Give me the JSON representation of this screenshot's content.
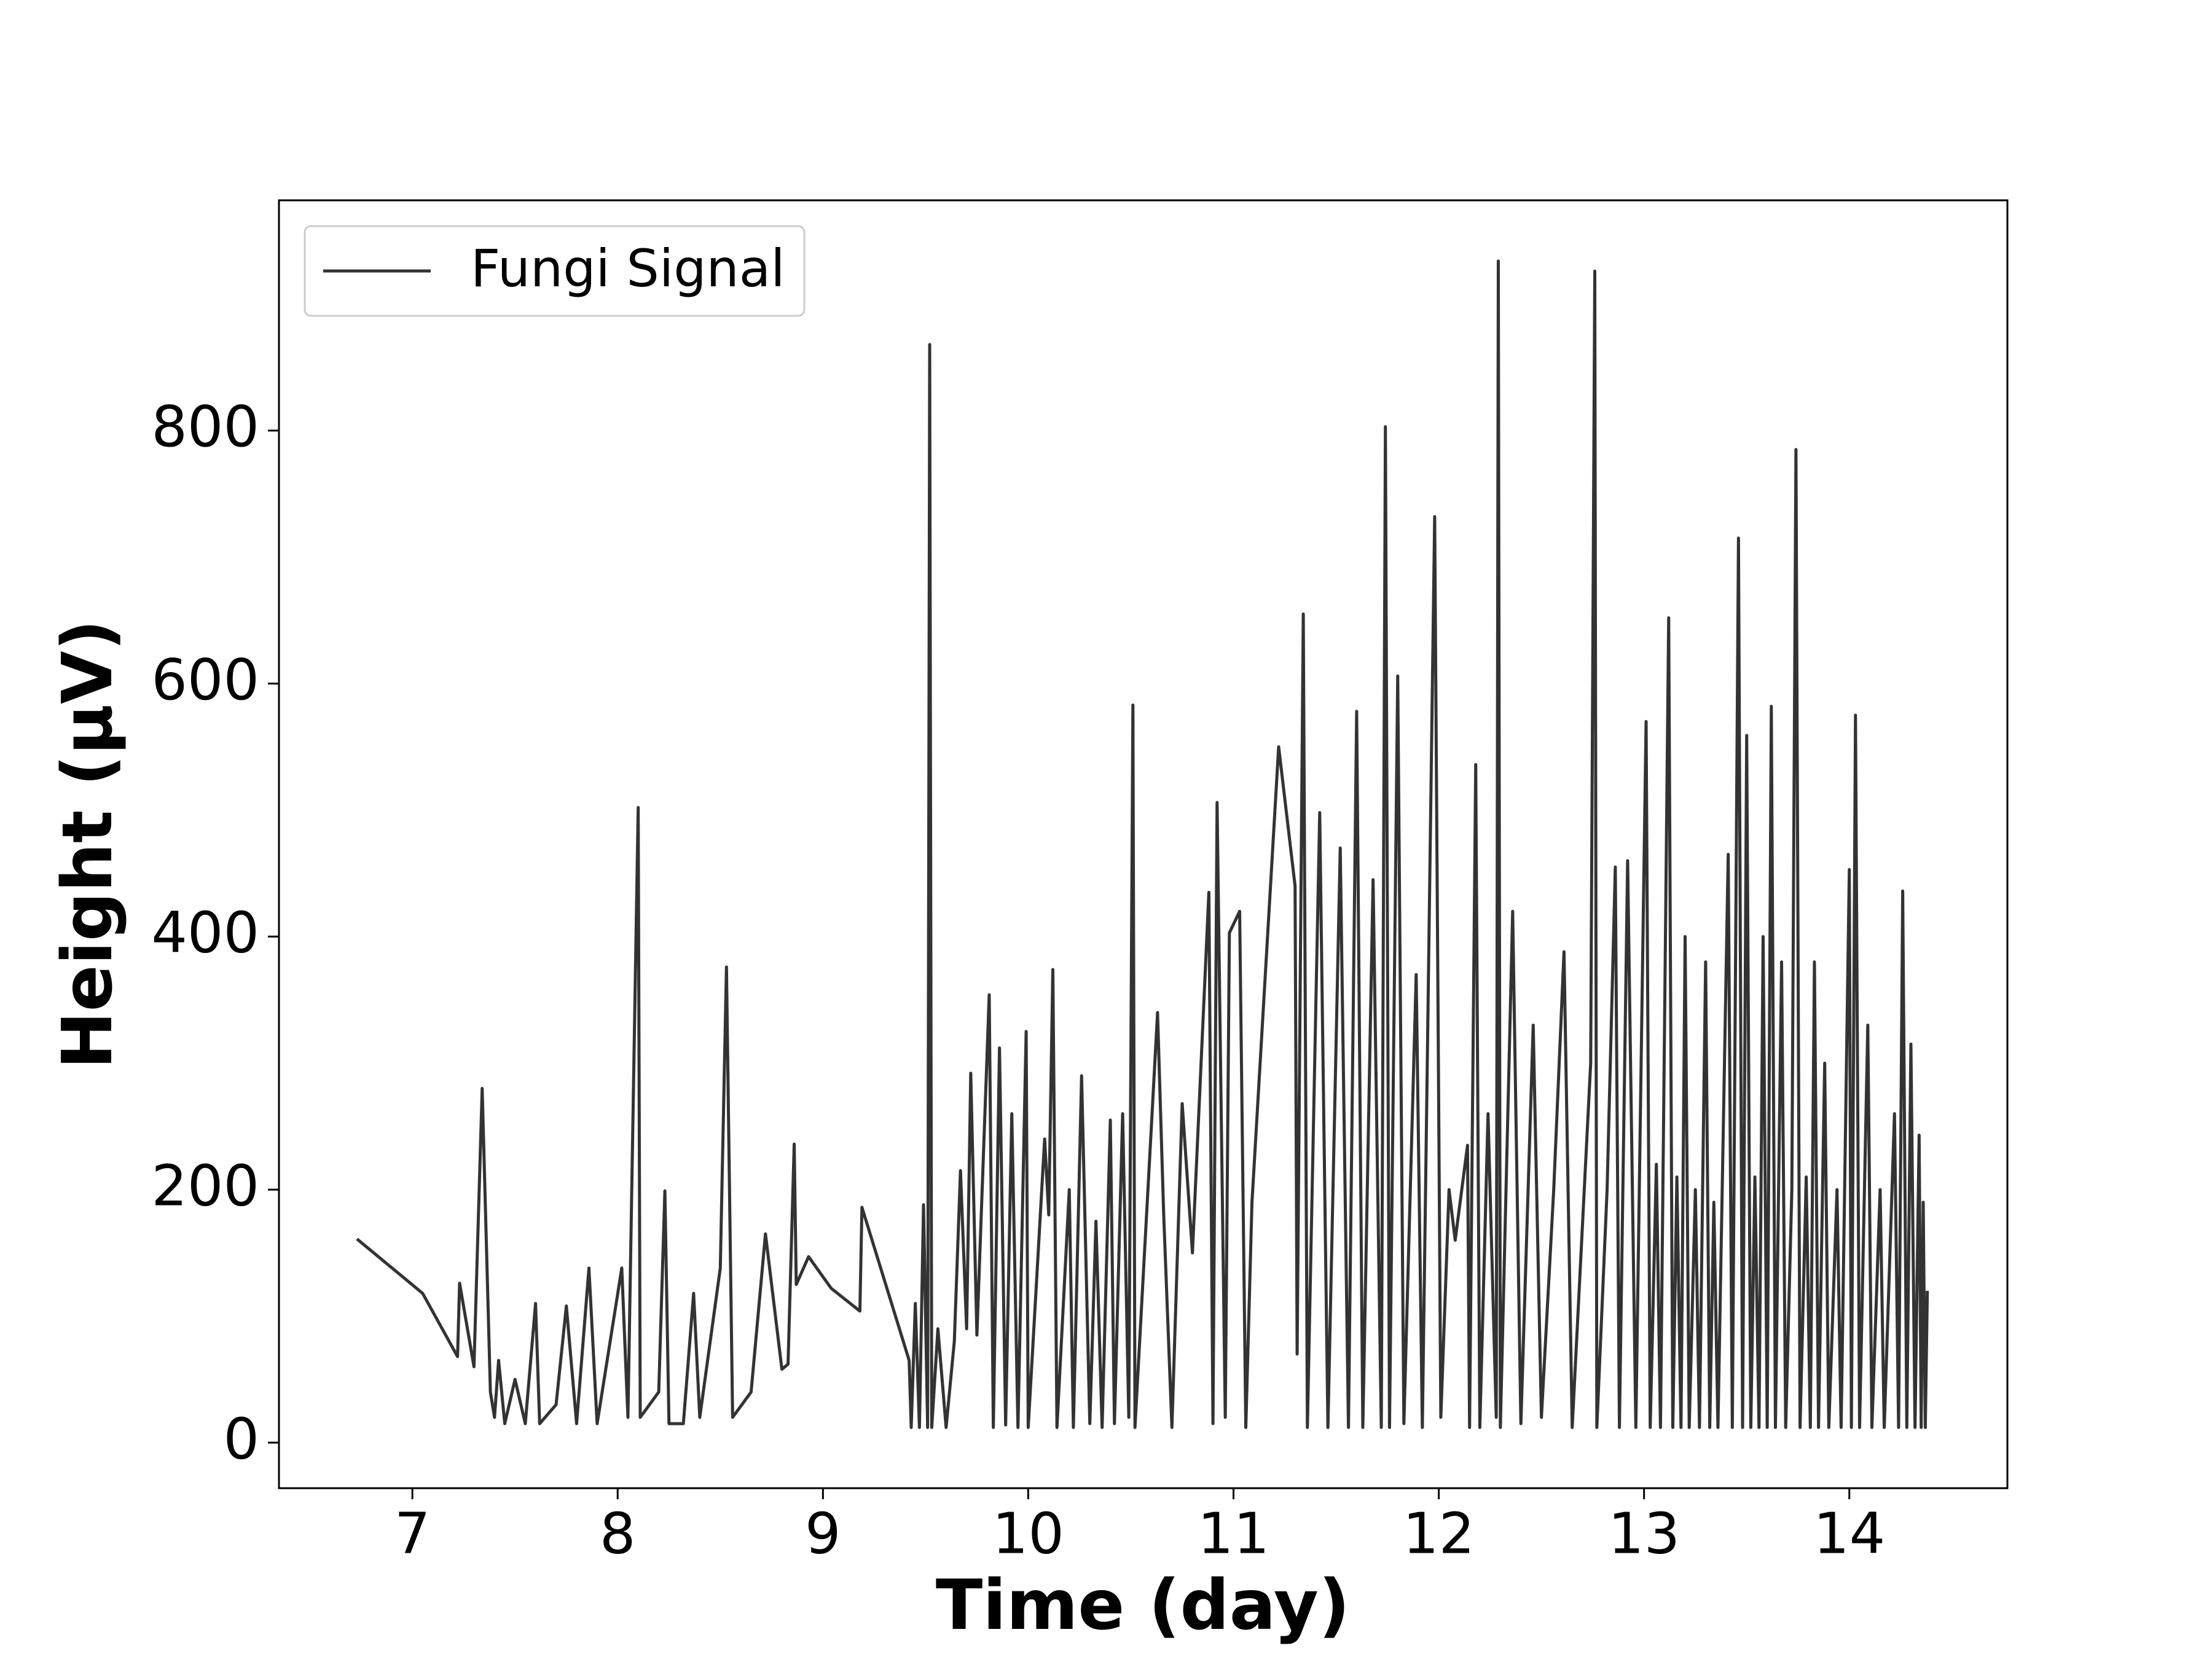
{
  "chart_data": {
    "type": "line",
    "xlabel": "Time (day)",
    "ylabel": "Height (μV)",
    "xlim": [
      6.35,
      14.77
    ],
    "ylim": [
      -36,
      982
    ],
    "xticks": [
      7,
      8,
      9,
      10,
      11,
      12,
      13,
      14
    ],
    "yticks": [
      0,
      200,
      400,
      600,
      800
    ],
    "legend": "upper left",
    "grid": false,
    "x": [
      6.73,
      7.05,
      7.22,
      7.23,
      7.3,
      7.34,
      7.38,
      7.4,
      7.42,
      7.45,
      7.5,
      7.55,
      7.6,
      7.62,
      7.7,
      7.75,
      7.8,
      7.86,
      7.9,
      8.02,
      8.05,
      8.1,
      8.11,
      8.2,
      8.23,
      8.25,
      8.32,
      8.37,
      8.4,
      8.5,
      8.53,
      8.56,
      8.65,
      8.72,
      8.8,
      8.83,
      8.86,
      8.87,
      8.93,
      9.04,
      9.18,
      9.19,
      9.42,
      9.43,
      9.45,
      9.47,
      9.49,
      9.51,
      9.52,
      9.53,
      9.56,
      9.6,
      9.64,
      9.67,
      9.7,
      9.72,
      9.75,
      9.81,
      9.83,
      9.86,
      9.89,
      9.92,
      9.95,
      9.99,
      10.0,
      10.08,
      10.1,
      10.12,
      10.14,
      10.2,
      10.22,
      10.26,
      10.3,
      10.33,
      10.36,
      10.4,
      10.42,
      10.46,
      10.49,
      10.51,
      10.52,
      10.6,
      10.63,
      10.66,
      10.7,
      10.75,
      10.8,
      10.88,
      10.9,
      10.92,
      10.96,
      10.98,
      11.03,
      11.06,
      11.09,
      11.22,
      11.3,
      11.31,
      11.34,
      11.36,
      11.42,
      11.46,
      11.52,
      11.56,
      11.6,
      11.63,
      11.68,
      11.72,
      11.74,
      11.76,
      11.8,
      11.83,
      11.89,
      11.92,
      11.98,
      12.01,
      12.05,
      12.08,
      12.14,
      12.15,
      12.18,
      12.2,
      12.24,
      12.28,
      12.29,
      12.3,
      12.36,
      12.4,
      12.46,
      12.5,
      12.56,
      12.61,
      12.65,
      12.74,
      12.76,
      12.77,
      12.82,
      12.86,
      12.88,
      12.92,
      12.96,
      13.01,
      13.03,
      13.06,
      13.08,
      13.12,
      13.14,
      13.16,
      13.18,
      13.2,
      13.22,
      13.25,
      13.27,
      13.3,
      13.32,
      13.34,
      13.36,
      13.41,
      13.43,
      13.46,
      13.48,
      13.5,
      13.52,
      13.54,
      13.56,
      13.58,
      13.6,
      13.62,
      13.64,
      13.67,
      13.69,
      13.72,
      13.74,
      13.76,
      13.79,
      13.81,
      13.83,
      13.85,
      13.88,
      13.9,
      13.94,
      13.96,
      14.0,
      14.01,
      14.03,
      14.05,
      14.09,
      14.11,
      14.15,
      14.17,
      14.22,
      14.24,
      14.26,
      14.28,
      14.3,
      14.32,
      14.34,
      14.35,
      14.36,
      14.37,
      14.38
    ],
    "series": [
      {
        "name": "Fungi Signal",
        "color": "#333333",
        "values": [
          161,
          118,
          68,
          126,
          60,
          280,
          40,
          20,
          65,
          15,
          50,
          15,
          110,
          15,
          30,
          108,
          15,
          138,
          15,
          138,
          20,
          502,
          20,
          40,
          199,
          15,
          15,
          118,
          20,
          138,
          376,
          20,
          40,
          165,
          58,
          62,
          236,
          125,
          147,
          122,
          104,
          186,
          65,
          12,
          110,
          12,
          188,
          12,
          868,
          12,
          90,
          12,
          80,
          215,
          90,
          292,
          85,
          354,
          12,
          312,
          14,
          260,
          12,
          325,
          12,
          240,
          180,
          374,
          12,
          200,
          12,
          290,
          15,
          175,
          12,
          255,
          15,
          260,
          20,
          583,
          12,
          250,
          340,
          180,
          12,
          268,
          150,
          435,
          15,
          506,
          20,
          403,
          420,
          12,
          190,
          550,
          440,
          70,
          655,
          12,
          498,
          12,
          470,
          12,
          578,
          12,
          445,
          12,
          803,
          12,
          606,
          15,
          370,
          12,
          732,
          20,
          200,
          160,
          235,
          12,
          536,
          12,
          260,
          20,
          934,
          12,
          420,
          15,
          330,
          20,
          200,
          388,
          12,
          300,
          926,
          12,
          200,
          455,
          12,
          460,
          12,
          570,
          12,
          220,
          12,
          652,
          12,
          210,
          12,
          400,
          12,
          200,
          12,
          380,
          12,
          190,
          12,
          465,
          12,
          715,
          12,
          559,
          12,
          210,
          12,
          400,
          12,
          582,
          12,
          380,
          12,
          200,
          785,
          12,
          210,
          12,
          380,
          12,
          300,
          12,
          200,
          12,
          453,
          12,
          575,
          12,
          330,
          12,
          200,
          12,
          260,
          12,
          436,
          12,
          315,
          12,
          243,
          12,
          190,
          12,
          120
        ]
      }
    ]
  }
}
